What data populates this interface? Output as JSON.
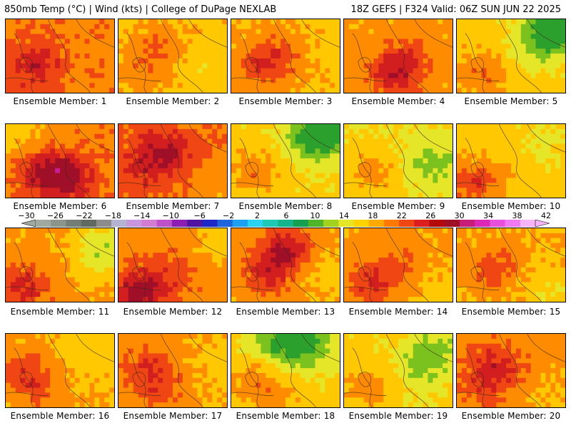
{
  "header": {
    "left": "850mb Temp (°C) | Wind (kts) | College of DuPage NEXLAB",
    "right": "18Z GEFS | F324 Valid: 06Z SUN JUN 22 2025"
  },
  "colorbar": {
    "labels": [
      "−30",
      "−26",
      "−22",
      "−18",
      "−14",
      "−10",
      "−6",
      "−2",
      "2",
      "6",
      "10",
      "14",
      "18",
      "22",
      "26",
      "30",
      "34",
      "38",
      "42"
    ],
    "values": [
      -30,
      -26,
      -22,
      -18,
      -14,
      -10,
      -6,
      -2,
      2,
      6,
      10,
      14,
      18,
      22,
      26,
      30,
      34,
      38,
      42
    ],
    "colors": [
      "#9fa99f",
      "#8a948a",
      "#737d73",
      "#5f695f",
      "#8c8c8c",
      "#b4b4d2",
      "#c896dc",
      "#d27dd2",
      "#be50c8",
      "#8c1eb4",
      "#5014a0",
      "#1e28c8",
      "#1e64dc",
      "#1ea0f0",
      "#28d2f0",
      "#1ec8b4",
      "#14b48c",
      "#14a050",
      "#50b428",
      "#a0d21e",
      "#e6e628",
      "#ffd200",
      "#ffaa00",
      "#ff7800",
      "#f04614",
      "#dc1e1e",
      "#b40a0a",
      "#a00f28",
      "#c81e78",
      "#dc28b4",
      "#e650dc",
      "#f078f0",
      "#f8b4f8"
    ]
  },
  "panels": [
    {
      "label": "Ensemble Member: 1",
      "base": 25,
      "hot": [
        [
          0.3,
          0.5,
          4
        ],
        [
          0.15,
          0.7,
          3
        ]
      ],
      "cool": []
    },
    {
      "label": "Ensemble Member: 2",
      "base": 21,
      "hot": [
        [
          0.35,
          0.35,
          5
        ],
        [
          0.2,
          0.7,
          3
        ]
      ],
      "cool": [
        [
          0.75,
          0.6,
          -2
        ]
      ]
    },
    {
      "label": "Ensemble Member: 3",
      "base": 22,
      "hot": [
        [
          0.25,
          0.6,
          6
        ],
        [
          0.45,
          0.4,
          4
        ]
      ],
      "cool": [
        [
          0.85,
          0.3,
          -2
        ]
      ]
    },
    {
      "label": "Ensemble Member: 4",
      "base": 23,
      "hot": [
        [
          0.45,
          0.7,
          8
        ],
        [
          0.6,
          0.45,
          3
        ]
      ],
      "cool": []
    },
    {
      "label": "Ensemble Member: 5",
      "base": 20,
      "hot": [
        [
          0.2,
          0.7,
          6
        ]
      ],
      "cool": [
        [
          0.9,
          0.1,
          -12
        ],
        [
          0.7,
          0.3,
          -5
        ]
      ]
    },
    {
      "label": "Ensemble Member: 6",
      "base": 25,
      "hot": [
        [
          0.55,
          0.7,
          8
        ],
        [
          0.3,
          0.6,
          6
        ]
      ],
      "cool": [
        [
          0.05,
          0.05,
          -6
        ]
      ]
    },
    {
      "label": "Ensemble Member: 7",
      "base": 26,
      "hot": [
        [
          0.4,
          0.35,
          6
        ],
        [
          0.2,
          0.6,
          3
        ]
      ],
      "cool": [
        [
          0.9,
          0.8,
          -3
        ]
      ]
    },
    {
      "label": "Ensemble Member: 8",
      "base": 19,
      "hot": [
        [
          0.2,
          0.6,
          6
        ]
      ],
      "cool": [
        [
          0.85,
          0.05,
          -11
        ],
        [
          0.7,
          0.2,
          -5
        ]
      ]
    },
    {
      "label": "Ensemble Member: 9",
      "base": 18,
      "hot": [
        [
          0.25,
          0.6,
          6
        ]
      ],
      "cool": [
        [
          0.8,
          0.5,
          -5
        ]
      ]
    },
    {
      "label": "Ensemble Member: 10",
      "base": 20,
      "hot": [
        [
          0.1,
          0.8,
          7
        ],
        [
          0.3,
          0.7,
          3
        ]
      ],
      "cool": [
        [
          0.8,
          0.2,
          -3
        ]
      ]
    },
    {
      "label": "Ensemble Member: 11",
      "base": 23,
      "hot": [
        [
          0.15,
          0.75,
          7
        ]
      ],
      "cool": [
        [
          0.9,
          0.2,
          -6
        ],
        [
          0.8,
          0.4,
          -3
        ]
      ]
    },
    {
      "label": "Ensemble Member: 12",
      "base": 24,
      "hot": [
        [
          0.15,
          0.85,
          9
        ],
        [
          0.45,
          0.6,
          4
        ]
      ],
      "cool": [
        [
          0.9,
          0.1,
          -4
        ]
      ]
    },
    {
      "label": "Ensemble Member: 13",
      "base": 23,
      "hot": [
        [
          0.5,
          0.25,
          9
        ],
        [
          0.3,
          0.6,
          6
        ]
      ],
      "cool": [
        [
          0.9,
          0.6,
          -3
        ]
      ]
    },
    {
      "label": "Ensemble Member: 14",
      "base": 23,
      "hot": [
        [
          0.2,
          0.7,
          6
        ],
        [
          0.5,
          0.5,
          3
        ]
      ],
      "cool": [
        [
          0.9,
          0.8,
          -3
        ]
      ]
    },
    {
      "label": "Ensemble Member: 15",
      "base": 22,
      "hot": [
        [
          0.3,
          0.5,
          6
        ]
      ],
      "cool": [
        [
          0.9,
          0.85,
          -4
        ]
      ]
    },
    {
      "label": "Ensemble Member: 16",
      "base": 22,
      "hot": [
        [
          0.15,
          0.5,
          6
        ],
        [
          0.3,
          0.8,
          3
        ]
      ],
      "cool": [
        [
          0.8,
          0.2,
          -3
        ]
      ]
    },
    {
      "label": "Ensemble Member: 17",
      "base": 23,
      "hot": [
        [
          0.25,
          0.45,
          6
        ],
        [
          0.4,
          0.8,
          3
        ]
      ],
      "cool": [
        [
          0.9,
          0.4,
          -3
        ]
      ]
    },
    {
      "label": "Ensemble Member: 18",
      "base": 19,
      "hot": [
        [
          0.2,
          0.6,
          6
        ],
        [
          0.4,
          0.85,
          3
        ]
      ],
      "cool": [
        [
          0.65,
          0.05,
          -10
        ],
        [
          0.4,
          0.1,
          -6
        ]
      ]
    },
    {
      "label": "Ensemble Member: 19",
      "base": 19,
      "hot": [
        [
          0.2,
          0.7,
          6
        ]
      ],
      "cool": [
        [
          0.8,
          0.2,
          -6
        ],
        [
          0.65,
          0.5,
          -3
        ]
      ]
    },
    {
      "label": "Ensemble Member: 20",
      "base": 24,
      "hot": [
        [
          0.35,
          0.4,
          6
        ],
        [
          0.2,
          0.7,
          3
        ]
      ],
      "cool": [
        [
          0.9,
          0.8,
          -3
        ]
      ]
    }
  ]
}
